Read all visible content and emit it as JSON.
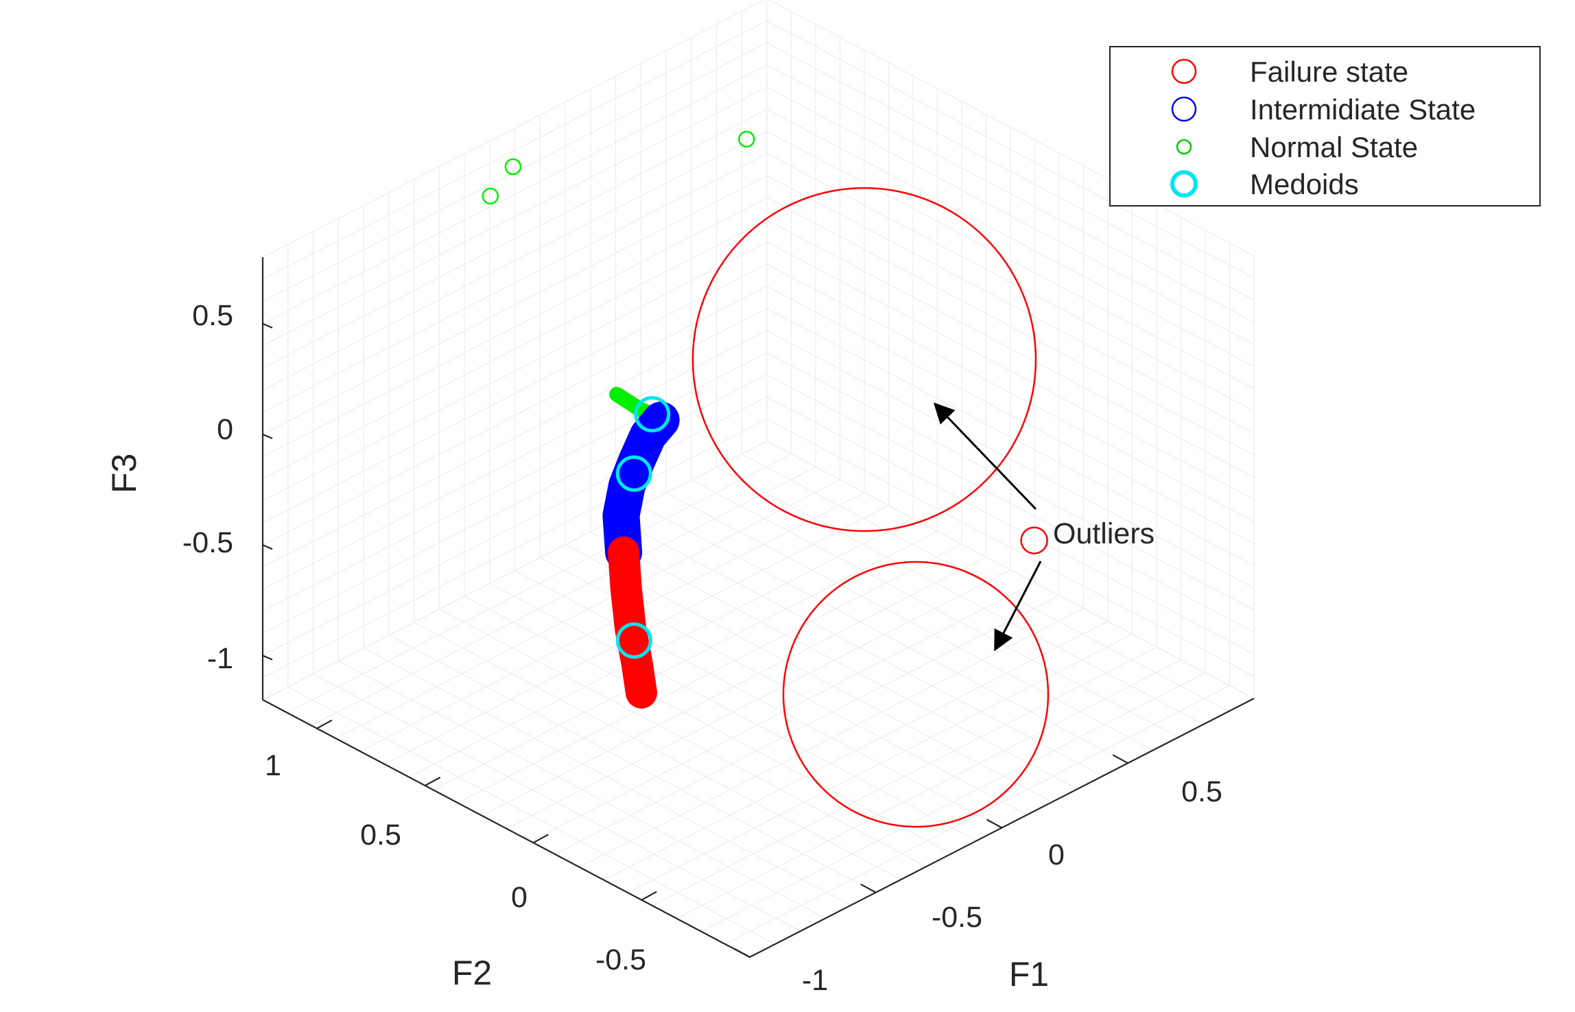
{
  "chart_data": {
    "type": "scatter",
    "projection": "3d",
    "xlabel": "F1",
    "ylabel": "F2",
    "zlabel": "F3",
    "xlim": [
      -1,
      1
    ],
    "ylim": [
      -1,
      1.25
    ],
    "zlim": [
      -1.2,
      0.8
    ],
    "grid": true,
    "x_ticks": [
      "-1",
      "-0.5",
      "0",
      "0.5"
    ],
    "x_tick_values": [
      -1,
      -0.5,
      0,
      0.5
    ],
    "y_ticks": [
      "-0.5",
      "0",
      "0.5",
      "1"
    ],
    "y_tick_values": [
      -0.5,
      0,
      0.5,
      1
    ],
    "z_ticks": [
      "-1",
      "-0.5",
      "0",
      "0.5"
    ],
    "z_tick_values": [
      -1,
      -0.5,
      0,
      0.5
    ],
    "legend": {
      "position": "top-right",
      "entries": [
        {
          "label": "Failure state",
          "color": "#ff0000",
          "marker": "circle"
        },
        {
          "label": "Intermidiate State",
          "color": "#0000ff",
          "marker": "circle"
        },
        {
          "label": "Normal State",
          "color": "#00cc00",
          "marker": "small-circle"
        },
        {
          "label": "Medoids",
          "color": "#00e5ee",
          "marker": "thick-circle"
        }
      ]
    },
    "series": [
      {
        "name": "Normal State",
        "color": "#00ee00",
        "points": [
          [
            -0.54,
            0.15,
            0.48
          ],
          [
            -0.5,
            0.09,
            0.42
          ],
          [
            -0.44,
            0.07,
            0.36
          ],
          [
            -0.38,
            0.11,
            0.3
          ],
          [
            -0.33,
            0.19,
            0.22
          ],
          [
            -0.14,
            1.2,
            0.6
          ],
          [
            -0.05,
            1.2,
            0.68
          ],
          [
            0.55,
            0.82,
            0.65
          ]
        ]
      },
      {
        "name": "Intermidiate State",
        "color": "#0000ff",
        "points": [
          [
            -0.33,
            0.19,
            0.22
          ],
          [
            -0.33,
            0.25,
            0.12
          ],
          [
            -0.35,
            0.28,
            0.0
          ],
          [
            -0.38,
            0.29,
            -0.1
          ],
          [
            -0.42,
            0.27,
            -0.2
          ],
          [
            -0.47,
            0.2,
            -0.3
          ]
        ]
      },
      {
        "name": "Failure state",
        "color": "#ff0000",
        "points": [
          [
            -0.47,
            0.2,
            -0.3
          ],
          [
            -0.52,
            0.13,
            -0.4
          ],
          [
            -0.58,
            0.04,
            -0.5
          ],
          [
            -0.64,
            -0.06,
            -0.57
          ],
          [
            -0.7,
            -0.15,
            -0.62
          ],
          [
            0.3,
            -0.8,
            -0.18
          ]
        ]
      },
      {
        "name": "Medoids",
        "color": "#00e5ee",
        "points": [
          [
            -0.46,
            0.08,
            0.38
          ],
          [
            -0.36,
            0.28,
            -0.05
          ],
          [
            -0.6,
            0.0,
            -0.52
          ]
        ]
      }
    ],
    "annotation": {
      "text": "Outliers"
    }
  }
}
